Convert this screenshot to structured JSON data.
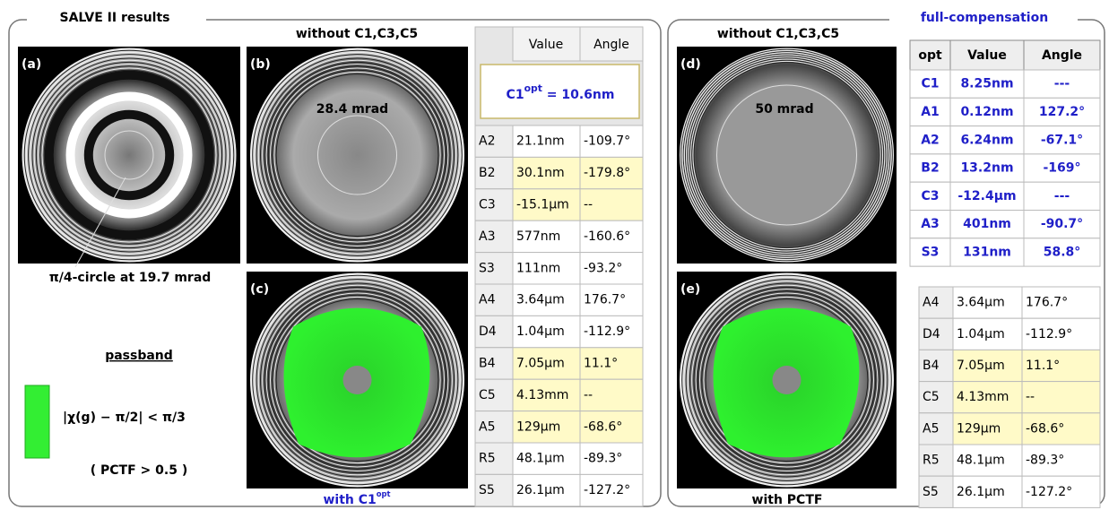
{
  "left_panel": {
    "title": "SALVE II results",
    "panel_a": {
      "label": "(a)",
      "caption": "π/4-circle at 19.7 mrad"
    },
    "panel_b": {
      "label": "(b)",
      "header": "without  C1,C3,C5",
      "annotation": "28.4 mrad"
    },
    "panel_c": {
      "label": "(c)",
      "caption": {
        "text": "with  C1",
        "sup": "opt"
      }
    },
    "passband": {
      "title": "passband",
      "condition": "|χ(g) − π/2| < π/3",
      "note": "( PCTF > 0.5 )"
    },
    "table": {
      "header": [
        "Value",
        "Angle"
      ],
      "overlay": {
        "text": "C1",
        "sup": "opt",
        "value": " = 10.6nm"
      },
      "rows": [
        [
          "A2",
          "21.1nm",
          "-109.7°"
        ],
        [
          "B2",
          "30.1nm",
          "-179.8°"
        ],
        [
          "C3",
          "-15.1µm",
          "--"
        ],
        [
          "A3",
          "577nm",
          "-160.6°"
        ],
        [
          "S3",
          "111nm",
          "-93.2°"
        ],
        [
          "A4",
          "3.64µm",
          "176.7°"
        ],
        [
          "D4",
          "1.04µm",
          "-112.9°"
        ],
        [
          "B4",
          "7.05µm",
          "11.1°"
        ],
        [
          "C5",
          "4.13mm",
          "--"
        ],
        [
          "A5",
          "129µm",
          "-68.6°"
        ],
        [
          "R5",
          "48.1µm",
          "-89.3°"
        ],
        [
          "S5",
          "26.1µm",
          "-127.2°"
        ]
      ]
    }
  },
  "right_panel": {
    "title": "full-compensation",
    "panel_d": {
      "label": "(d)",
      "header": "without  C1,C3,C5",
      "annotation": "50 mrad"
    },
    "panel_e": {
      "label": "(e)",
      "caption": "with PCTF"
    },
    "table_top": {
      "header": [
        "opt",
        "Value",
        "Angle"
      ],
      "rows": [
        [
          "C1",
          "8.25nm",
          "---"
        ],
        [
          "A1",
          "0.12nm",
          "127.2°"
        ],
        [
          "A2",
          "6.24nm",
          "-67.1°"
        ],
        [
          "B2",
          "13.2nm",
          "-169°"
        ],
        [
          "C3",
          "-12.4µm",
          "---"
        ],
        [
          "A3",
          "401nm",
          "-90.7°"
        ],
        [
          "S3",
          "131nm",
          "58.8°"
        ]
      ]
    },
    "table_bottom": {
      "rows": [
        [
          "A4",
          "3.64µm",
          "176.7°"
        ],
        [
          "D4",
          "1.04µm",
          "-112.9°"
        ],
        [
          "B4",
          "7.05µm",
          "11.1°"
        ],
        [
          "C5",
          "4.13mm",
          "--"
        ],
        [
          "A5",
          "129µm",
          "-68.6°"
        ],
        [
          "R5",
          "48.1µm",
          "-89.3°"
        ],
        [
          "S5",
          "26.1µm",
          "-127.2°"
        ]
      ]
    }
  }
}
